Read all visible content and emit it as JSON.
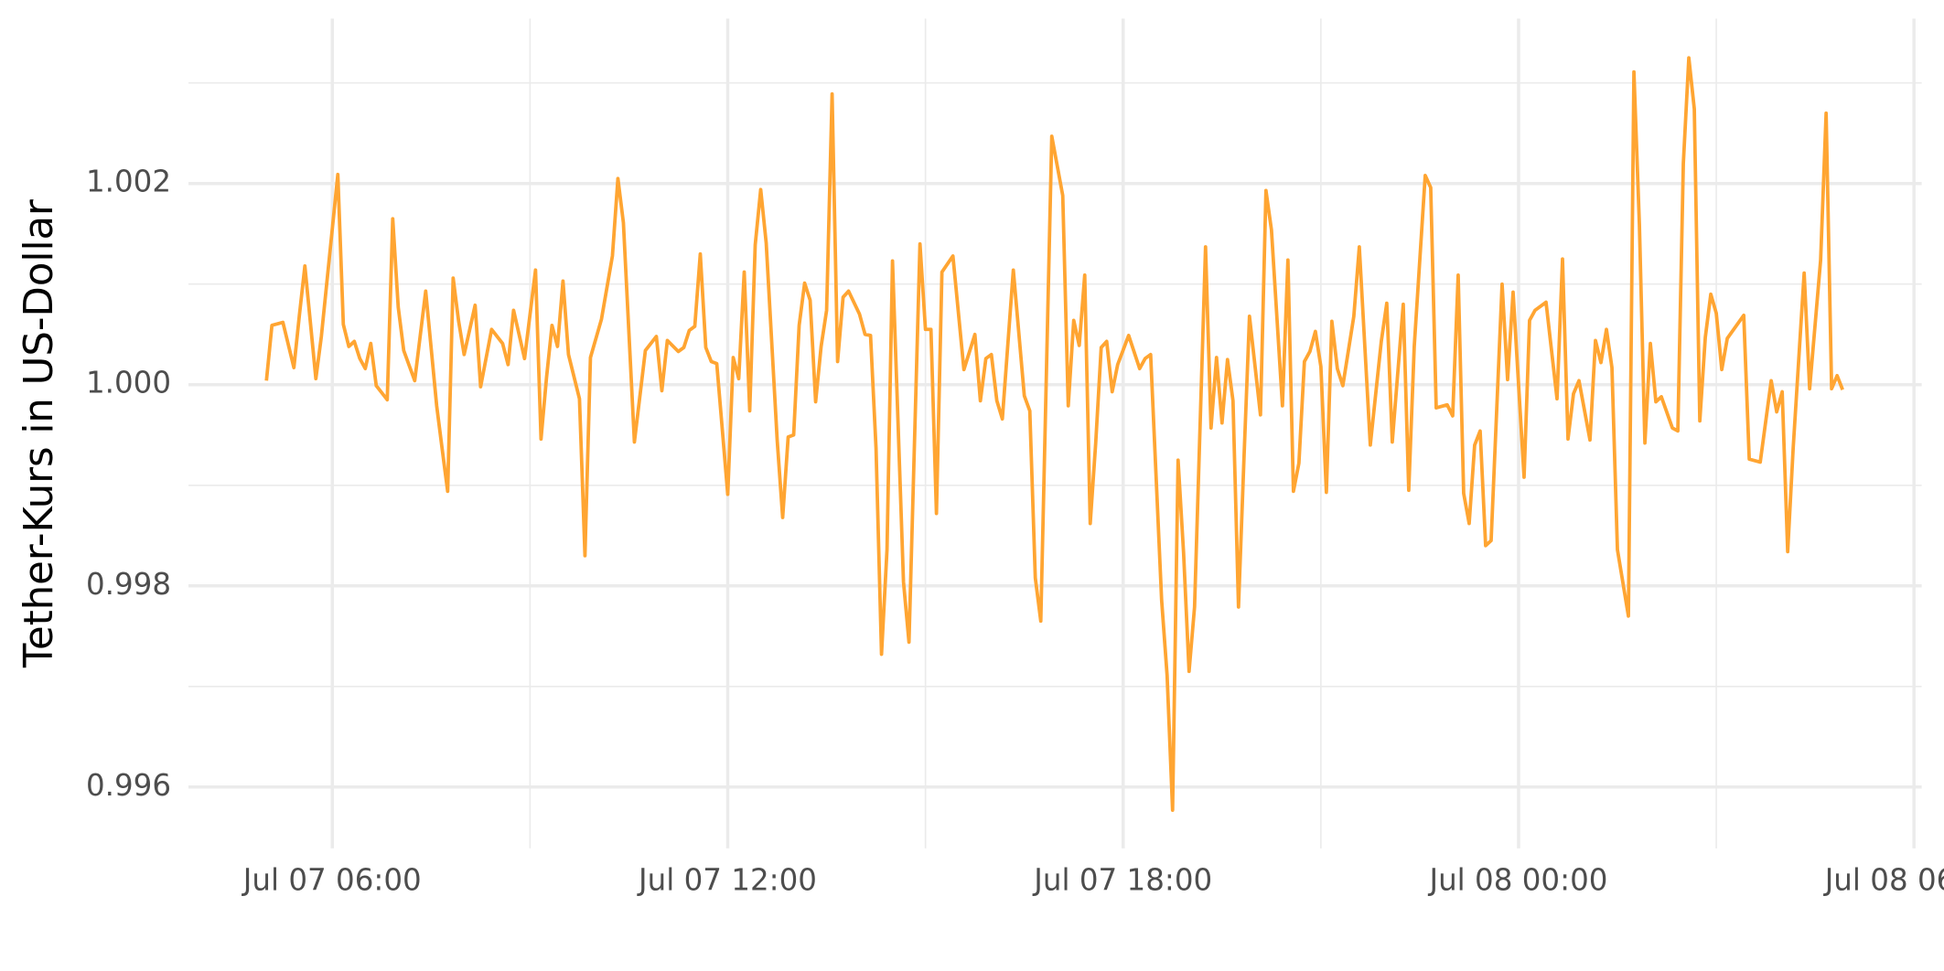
{
  "chart_data": {
    "type": "line",
    "y_label": "Tether-Kurs in US-Dollar",
    "color": "#ffa532",
    "grid": true,
    "xlim": [
      "Jul 07 03:49",
      "Jul 08 06:07"
    ],
    "xticks": [
      "Jul 07 06:00",
      "Jul 07 12:00",
      "Jul 07 18:00",
      "Jul 08 00:00",
      "Jul 08 06:00"
    ],
    "ylim": [
      0.99539,
      1.00364
    ],
    "yticks": [
      0.996,
      0.998,
      {
        "value": 1,
        "label": "1.000"
      },
      1.002
    ],
    "x": [
      "Jul 07 05:00",
      "Jul 07 05:05",
      "Jul 07 05:15",
      "Jul 07 05:25",
      "Jul 07 05:30",
      "Jul 07 05:35",
      "Jul 07 05:45",
      "Jul 07 05:50",
      "Jul 07 06:05",
      "Jul 07 06:10",
      "Jul 07 06:15",
      "Jul 07 06:20",
      "Jul 07 06:25",
      "Jul 07 06:30",
      "Jul 07 06:35",
      "Jul 07 06:40",
      "Jul 07 06:50",
      "Jul 07 06:55",
      "Jul 07 07:00",
      "Jul 07 07:05",
      "Jul 07 07:15",
      "Jul 07 07:25",
      "Jul 07 07:35",
      "Jul 07 07:40",
      "Jul 07 07:45",
      "Jul 07 07:50",
      "Jul 07 07:55",
      "Jul 07 08:00",
      "Jul 07 08:10",
      "Jul 07 08:15",
      "Jul 07 08:25",
      "Jul 07 08:35",
      "Jul 07 08:40",
      "Jul 07 08:45",
      "Jul 07 08:55",
      "Jul 07 09:05",
      "Jul 07 09:10",
      "Jul 07 09:15",
      "Jul 07 09:20",
      "Jul 07 09:25",
      "Jul 07 09:30",
      "Jul 07 09:35",
      "Jul 07 09:45",
      "Jul 07 09:50",
      "Jul 07 09:55",
      "Jul 07 10:05",
      "Jul 07 10:15",
      "Jul 07 10:20",
      "Jul 07 10:25",
      "Jul 07 10:35",
      "Jul 07 10:45",
      "Jul 07 10:55",
      "Jul 07 11:00",
      "Jul 07 11:05",
      "Jul 07 11:15",
      "Jul 07 11:20",
      "Jul 07 11:25",
      "Jul 07 11:30",
      "Jul 07 11:35",
      "Jul 07 11:40",
      "Jul 07 11:45",
      "Jul 07 11:50",
      "Jul 07 12:00",
      "Jul 07 12:05",
      "Jul 07 12:10",
      "Jul 07 12:15",
      "Jul 07 12:20",
      "Jul 07 12:25",
      "Jul 07 12:30",
      "Jul 07 12:35",
      "Jul 07 12:45",
      "Jul 07 12:50",
      "Jul 07 12:55",
      "Jul 07 13:00",
      "Jul 07 13:05",
      "Jul 07 13:10",
      "Jul 07 13:15",
      "Jul 07 13:20",
      "Jul 07 13:25",
      "Jul 07 13:30",
      "Jul 07 13:35",
      "Jul 07 13:40",
      "Jul 07 13:45",
      "Jul 07 13:50",
      "Jul 07 14:00",
      "Jul 07 14:05",
      "Jul 07 14:10",
      "Jul 07 14:15",
      "Jul 07 14:20",
      "Jul 07 14:25",
      "Jul 07 14:30",
      "Jul 07 14:40",
      "Jul 07 14:45",
      "Jul 07 14:55",
      "Jul 07 15:00",
      "Jul 07 15:05",
      "Jul 07 15:10",
      "Jul 07 15:15",
      "Jul 07 15:25",
      "Jul 07 15:35",
      "Jul 07 15:45",
      "Jul 07 15:50",
      "Jul 07 15:55",
      "Jul 07 16:00",
      "Jul 07 16:05",
      "Jul 07 16:10",
      "Jul 07 16:20",
      "Jul 07 16:30",
      "Jul 07 16:35",
      "Jul 07 16:40",
      "Jul 07 16:45",
      "Jul 07 16:55",
      "Jul 07 17:05",
      "Jul 07 17:10",
      "Jul 07 17:15",
      "Jul 07 17:20",
      "Jul 07 17:25",
      "Jul 07 17:30",
      "Jul 07 17:35",
      "Jul 07 17:40",
      "Jul 07 17:45",
      "Jul 07 17:50",
      "Jul 07 17:55",
      "Jul 07 18:05",
      "Jul 07 18:15",
      "Jul 07 18:20",
      "Jul 07 18:25",
      "Jul 07 18:35",
      "Jul 07 18:40",
      "Jul 07 18:45",
      "Jul 07 18:50",
      "Jul 07 18:55",
      "Jul 07 19:00",
      "Jul 07 19:05",
      "Jul 07 19:15",
      "Jul 07 19:20",
      "Jul 07 19:25",
      "Jul 07 19:30",
      "Jul 07 19:35",
      "Jul 07 19:40",
      "Jul 07 19:45",
      "Jul 07 19:50",
      "Jul 07 19:55",
      "Jul 07 20:05",
      "Jul 07 20:10",
      "Jul 07 20:15",
      "Jul 07 20:25",
      "Jul 07 20:30",
      "Jul 07 20:35",
      "Jul 07 20:40",
      "Jul 07 20:45",
      "Jul 07 20:50",
      "Jul 07 20:55",
      "Jul 07 21:00",
      "Jul 07 21:05",
      "Jul 07 21:10",
      "Jul 07 21:15",
      "Jul 07 21:20",
      "Jul 07 21:30",
      "Jul 07 21:35",
      "Jul 07 21:45",
      "Jul 07 21:55",
      "Jul 07 22:00",
      "Jul 07 22:05",
      "Jul 07 22:15",
      "Jul 07 22:20",
      "Jul 07 22:25",
      "Jul 07 22:35",
      "Jul 07 22:40",
      "Jul 07 22:45",
      "Jul 07 22:55",
      "Jul 07 23:00",
      "Jul 07 23:05",
      "Jul 07 23:10",
      "Jul 07 23:15",
      "Jul 07 23:20",
      "Jul 07 23:25",
      "Jul 07 23:30",
      "Jul 07 23:35",
      "Jul 07 23:45",
      "Jul 07 23:50",
      "Jul 07 23:55",
      "Jul 08 00:05",
      "Jul 08 00:10",
      "Jul 08 00:15",
      "Jul 08 00:25",
      "Jul 08 00:35",
      "Jul 08 00:40",
      "Jul 08 00:45",
      "Jul 08 00:50",
      "Jul 08 00:55",
      "Jul 08 01:05",
      "Jul 08 01:10",
      "Jul 08 01:15",
      "Jul 08 01:20",
      "Jul 08 01:25",
      "Jul 08 01:30",
      "Jul 08 01:40",
      "Jul 08 01:45",
      "Jul 08 01:50",
      "Jul 08 01:55",
      "Jul 08 02:00",
      "Jul 08 02:05",
      "Jul 08 02:10",
      "Jul 08 02:20",
      "Jul 08 02:25",
      "Jul 08 02:30",
      "Jul 08 02:35",
      "Jul 08 02:40",
      "Jul 08 02:45",
      "Jul 08 02:50",
      "Jul 08 02:55",
      "Jul 08 03:00",
      "Jul 08 03:05",
      "Jul 08 03:10",
      "Jul 08 03:25",
      "Jul 08 03:30",
      "Jul 08 03:40",
      "Jul 08 03:50",
      "Jul 08 03:55",
      "Jul 08 04:00",
      "Jul 08 04:05",
      "Jul 08 04:10",
      "Jul 08 04:20",
      "Jul 08 04:25",
      "Jul 08 04:35",
      "Jul 08 04:40",
      "Jul 08 04:45",
      "Jul 08 04:50",
      "Jul 08 04:55"
    ],
    "values": [
      1.00004,
      1.00059,
      1.00062,
      1.00017,
      1.00069,
      1.00118,
      1.00006,
      1.00048,
      1.00209,
      1.0006,
      1.00038,
      1.00043,
      1.00026,
      1.00016,
      1.00041,
      0.99999,
      0.99985,
      1.00165,
      1.00077,
      1.00034,
      1.00004,
      1.00093,
      0.99979,
      0.99936,
      0.99894,
      1.00106,
      1.00063,
      1.0003,
      1.00079,
      0.99998,
      1.00055,
      1.00041,
      1.0002,
      1.00074,
      1.00026,
      1.00114,
      0.99946,
      1.00007,
      1.00059,
      1.00038,
      1.00103,
      1.0003,
      0.99986,
      0.9983,
      1.00027,
      1.00065,
      1.00128,
      1.00205,
      1.00161,
      0.99943,
      1.00034,
      1.00048,
      0.99994,
      1.00044,
      1.00033,
      1.00037,
      1.00054,
      1.00058,
      1.0013,
      1.00037,
      1.00023,
      1.00021,
      0.99891,
      1.00027,
      1.00006,
      1.00112,
      0.99974,
      1.00139,
      1.00194,
      1.00141,
      0.99945,
      0.99868,
      0.99948,
      0.9995,
      1.00059,
      1.00101,
      1.00084,
      0.99983,
      1.00038,
      1.00074,
      1.00289,
      1.00023,
      1.00087,
      1.00093,
      1.0007,
      1.0005,
      1.00049,
      0.99937,
      0.99732,
      0.99836,
      1.00123,
      0.99804,
      0.99744,
      1.0014,
      1.00055,
      1.00055,
      0.99872,
      1.00112,
      1.00128,
      1.00015,
      1.0005,
      0.99984,
      1.00026,
      1.0003,
      0.99984,
      0.99966,
      1.00114,
      0.99989,
      0.99974,
      0.99808,
      0.99765,
      1.00247,
      1.00188,
      0.99979,
      1.00064,
      1.00039,
      1.00109,
      0.99862,
      0.99942,
      1.00037,
      1.00043,
      0.99993,
      1.0002,
      1.00049,
      1.00016,
      1.00026,
      1.0003,
      0.99786,
      0.99711,
      0.99577,
      0.99925,
      0.99833,
      0.99715,
      0.99779,
      1.00137,
      0.99957,
      1.00027,
      0.99962,
      1.00025,
      0.99984,
      0.99779,
      0.99927,
      1.00068,
      0.9997,
      1.00193,
      1.00154,
      0.99979,
      1.00124,
      0.99894,
      0.99922,
      1.00023,
      1.00033,
      1.00053,
      1.00018,
      0.99893,
      1.00063,
      1.00016,
      0.99999,
      1.00068,
      1.00137,
      0.9994,
      1.00043,
      1.00081,
      0.99943,
      1.0008,
      0.99895,
      1.00038,
      1.00208,
      1.00196,
      0.99977,
      0.9998,
      0.99969,
      1.00109,
      0.99892,
      0.99862,
      0.9994,
      0.99954,
      0.9984,
      0.99845,
      1.001,
      1.00005,
      1.00092,
      0.99908,
      1.00064,
      1.00074,
      1.00082,
      0.99986,
      1.00125,
      0.99946,
      0.99991,
      1.00004,
      0.99945,
      1.00044,
      1.00022,
      1.00055,
      1.00017,
      0.99836,
      0.9977,
      1.00311,
      1.00159,
      0.99942,
      1.00041,
      0.99983,
      0.99988,
      0.99957,
      0.99954,
      1.0022,
      1.00325,
      1.00274,
      0.99964,
      1.00047,
      1.0009,
      1.00071,
      1.00015,
      1.00046,
      1.00069,
      0.99926,
      0.99923,
      1.00004,
      0.99973,
      0.99993,
      0.99834,
      0.99937,
      1.00111,
      0.99996,
      1.00124,
      1.0027,
      0.99996,
      1.00009,
      0.99995
    ]
  }
}
